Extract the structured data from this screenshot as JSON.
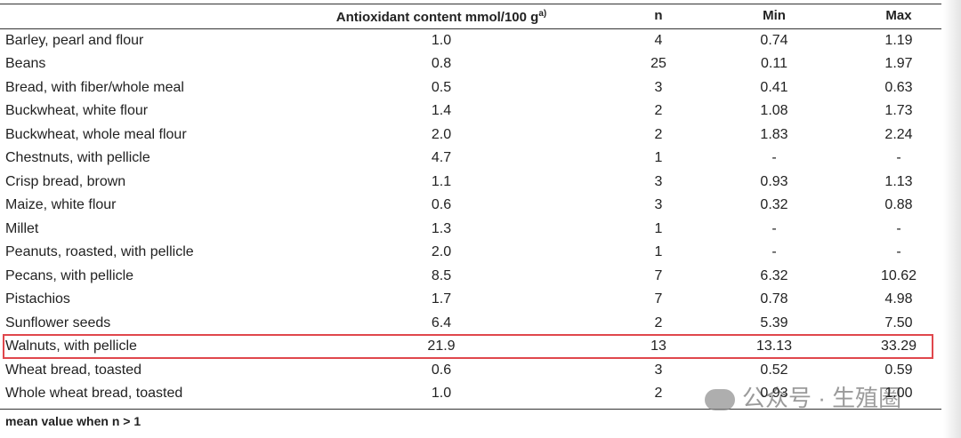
{
  "table": {
    "columns": [
      "Antioxidant content mmol/100 g",
      "n",
      "Min",
      "Max"
    ],
    "column_superscript": "a)",
    "rows": [
      [
        "Barley, pearl and flour",
        "1.0",
        "4",
        "0.74",
        "1.19"
      ],
      [
        "Beans",
        "0.8",
        "25",
        "0.11",
        "1.97"
      ],
      [
        "Bread, with fiber/whole meal",
        "0.5",
        "3",
        "0.41",
        "0.63"
      ],
      [
        "Buckwheat, white flour",
        "1.4",
        "2",
        "1.08",
        "1.73"
      ],
      [
        "Buckwheat, whole meal flour",
        "2.0",
        "2",
        "1.83",
        "2.24"
      ],
      [
        "Chestnuts, with pellicle",
        "4.7",
        "1",
        "-",
        "-"
      ],
      [
        "Crisp bread, brown",
        "1.1",
        "3",
        "0.93",
        "1.13"
      ],
      [
        "Maize, white flour",
        "0.6",
        "3",
        "0.32",
        "0.88"
      ],
      [
        "Millet",
        "1.3",
        "1",
        "-",
        "-"
      ],
      [
        "Peanuts, roasted, with pellicle",
        "2.0",
        "1",
        "-",
        "-"
      ],
      [
        "Pecans, with pellicle",
        "8.5",
        "7",
        "6.32",
        "10.62"
      ],
      [
        "Pistachios",
        "1.7",
        "7",
        "0.78",
        "4.98"
      ],
      [
        "Sunflower seeds",
        "6.4",
        "2",
        "5.39",
        "7.50"
      ],
      [
        "Walnuts, with pellicle",
        "21.9",
        "13",
        "13.13",
        "33.29"
      ],
      [
        "Wheat bread, toasted",
        "0.6",
        "3",
        "0.52",
        "0.59"
      ],
      [
        "Whole wheat bread, toasted",
        "1.0",
        "2",
        "0.93",
        "1.00"
      ]
    ],
    "highlight_row": 13,
    "footnote": "mean value when n > 1"
  },
  "watermark": "公众号 · 生殖圈"
}
